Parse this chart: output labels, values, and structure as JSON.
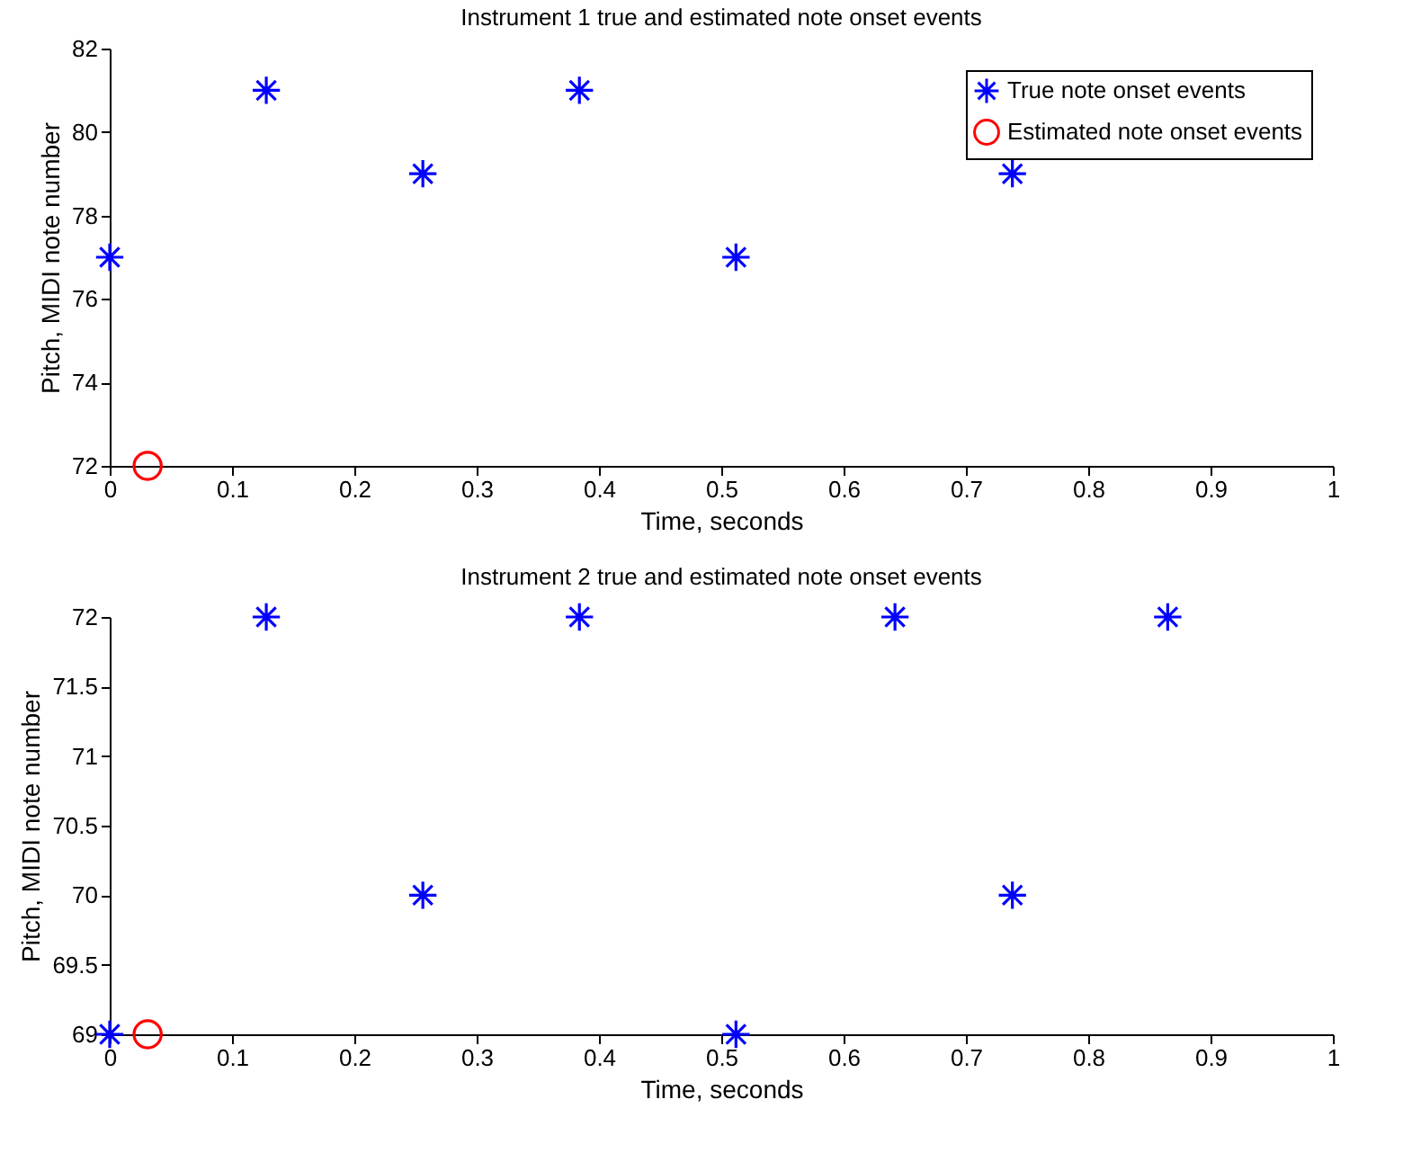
{
  "chart_data": [
    {
      "type": "scatter",
      "title": "Instrument 1 true and estimated note onset events",
      "xlabel": "Time, seconds",
      "ylabel": "Pitch, MIDI note number",
      "xlim": [
        0,
        1
      ],
      "xticks": [
        0,
        0.1,
        0.2,
        0.3,
        0.4,
        0.5,
        0.6,
        0.7,
        0.8,
        0.9,
        1
      ],
      "ylim": [
        72,
        82
      ],
      "yticks": [
        72,
        74,
        76,
        78,
        80,
        82
      ],
      "legend": "top right",
      "series": [
        {
          "name": "True note onset events",
          "color": "#0000ff",
          "marker": "cross",
          "x": [
            0,
            0.128,
            0.256,
            0.384,
            0.512,
            0.738
          ],
          "values": [
            77,
            81,
            79,
            81,
            77,
            79
          ]
        },
        {
          "name": "Estimated note onset events",
          "color": "#ff0000",
          "marker": "circle",
          "x": [
            0.031
          ],
          "values": [
            72
          ]
        }
      ]
    },
    {
      "type": "scatter",
      "title": "Instrument 2 true and estimated note onset events",
      "xlabel": "Time, seconds",
      "ylabel": "Pitch, MIDI note number",
      "xlim": [
        0,
        1
      ],
      "xticks": [
        0,
        0.1,
        0.2,
        0.3,
        0.4,
        0.5,
        0.6,
        0.7,
        0.8,
        0.9,
        1
      ],
      "ylim": [
        69,
        72
      ],
      "yticks": [
        69,
        69.5,
        70,
        70.5,
        71,
        71.5,
        72
      ],
      "legend": "top right",
      "series": [
        {
          "name": "True note onset events",
          "color": "#0000ff",
          "marker": "cross",
          "x": [
            0,
            0.128,
            0.256,
            0.384,
            0.512,
            0.642,
            0.738,
            0.865
          ],
          "values": [
            69,
            72,
            70,
            72,
            69,
            72,
            70,
            72
          ]
        },
        {
          "name": "Estimated note onset events",
          "color": "#ff0000",
          "marker": "circle",
          "x": [
            0.031
          ],
          "values": [
            69
          ]
        }
      ]
    }
  ]
}
